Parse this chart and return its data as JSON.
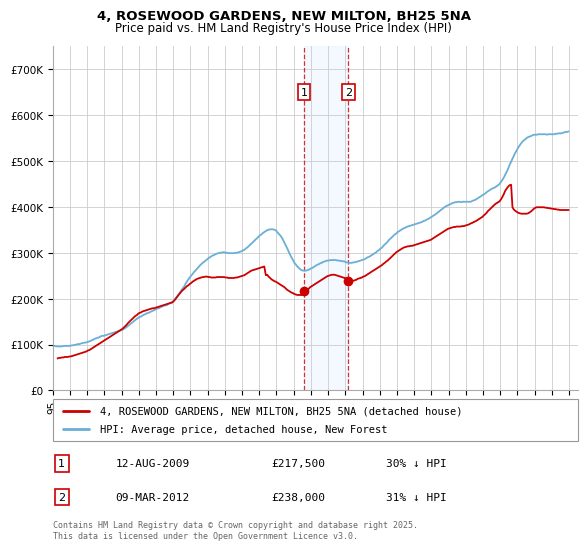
{
  "title": "4, ROSEWOOD GARDENS, NEW MILTON, BH25 5NA",
  "subtitle": "Price paid vs. HM Land Registry's House Price Index (HPI)",
  "ylim": [
    0,
    750000
  ],
  "yticks": [
    0,
    100000,
    200000,
    300000,
    400000,
    500000,
    600000,
    700000
  ],
  "ytick_labels": [
    "£0",
    "£100K",
    "£200K",
    "£300K",
    "£400K",
    "£500K",
    "£600K",
    "£700K"
  ],
  "xlim_start": 1995.0,
  "xlim_end": 2025.5,
  "xtick_years": [
    1995,
    1996,
    1997,
    1998,
    1999,
    2000,
    2001,
    2002,
    2003,
    2004,
    2005,
    2006,
    2007,
    2008,
    2009,
    2010,
    2011,
    2012,
    2013,
    2014,
    2015,
    2016,
    2017,
    2018,
    2019,
    2020,
    2021,
    2022,
    2023,
    2024,
    2025
  ],
  "hpi_color": "#6baed6",
  "property_color": "#cc0000",
  "grid_color": "#cccccc",
  "shade_color": "#ddeeff",
  "transaction1_date": 2009.61,
  "transaction2_date": 2012.18,
  "transaction1_label": "1",
  "transaction2_label": "2",
  "legend_property": "4, ROSEWOOD GARDENS, NEW MILTON, BH25 5NA (detached house)",
  "legend_hpi": "HPI: Average price, detached house, New Forest",
  "annotation1_date": "12-AUG-2009",
  "annotation1_price": "£217,500",
  "annotation1_hpi": "30% ↓ HPI",
  "annotation2_date": "09-MAR-2012",
  "annotation2_price": "£238,000",
  "annotation2_hpi": "31% ↓ HPI",
  "footnote": "Contains HM Land Registry data © Crown copyright and database right 2025.\nThis data is licensed under the Open Government Licence v3.0.",
  "hpi_years": [
    1995.04,
    1995.13,
    1995.21,
    1995.29,
    1995.38,
    1995.46,
    1995.54,
    1995.63,
    1995.71,
    1995.79,
    1995.88,
    1995.96,
    1996.04,
    1996.13,
    1996.21,
    1996.29,
    1996.38,
    1996.46,
    1996.54,
    1996.63,
    1996.71,
    1996.79,
    1996.88,
    1996.96,
    1997.04,
    1997.13,
    1997.21,
    1997.29,
    1997.38,
    1997.46,
    1997.54,
    1997.63,
    1997.71,
    1997.79,
    1997.88,
    1997.96,
    1998.04,
    1998.13,
    1998.21,
    1998.29,
    1998.38,
    1998.46,
    1998.54,
    1998.63,
    1998.71,
    1998.79,
    1998.88,
    1998.96,
    1999.04,
    1999.13,
    1999.21,
    1999.29,
    1999.38,
    1999.46,
    1999.54,
    1999.63,
    1999.71,
    1999.79,
    1999.88,
    1999.96,
    2000.04,
    2000.13,
    2000.21,
    2000.29,
    2000.38,
    2000.46,
    2000.54,
    2000.63,
    2000.71,
    2000.79,
    2000.88,
    2000.96,
    2001.04,
    2001.13,
    2001.21,
    2001.29,
    2001.38,
    2001.46,
    2001.54,
    2001.63,
    2001.71,
    2001.79,
    2001.88,
    2001.96,
    2002.04,
    2002.13,
    2002.21,
    2002.29,
    2002.38,
    2002.46,
    2002.54,
    2002.63,
    2002.71,
    2002.79,
    2002.88,
    2002.96,
    2003.04,
    2003.13,
    2003.21,
    2003.29,
    2003.38,
    2003.46,
    2003.54,
    2003.63,
    2003.71,
    2003.79,
    2003.88,
    2003.96,
    2004.04,
    2004.13,
    2004.21,
    2004.29,
    2004.38,
    2004.46,
    2004.54,
    2004.63,
    2004.71,
    2004.79,
    2004.88,
    2004.96,
    2005.04,
    2005.13,
    2005.21,
    2005.29,
    2005.38,
    2005.46,
    2005.54,
    2005.63,
    2005.71,
    2005.79,
    2005.88,
    2005.96,
    2006.04,
    2006.13,
    2006.21,
    2006.29,
    2006.38,
    2006.46,
    2006.54,
    2006.63,
    2006.71,
    2006.79,
    2006.88,
    2006.96,
    2007.04,
    2007.13,
    2007.21,
    2007.29,
    2007.38,
    2007.46,
    2007.54,
    2007.63,
    2007.71,
    2007.79,
    2007.88,
    2007.96,
    2008.04,
    2008.13,
    2008.21,
    2008.29,
    2008.38,
    2008.46,
    2008.54,
    2008.63,
    2008.71,
    2008.79,
    2008.88,
    2008.96,
    2009.04,
    2009.13,
    2009.21,
    2009.29,
    2009.38,
    2009.46,
    2009.54,
    2009.63,
    2009.71,
    2009.79,
    2009.88,
    2009.96,
    2010.04,
    2010.13,
    2010.21,
    2010.29,
    2010.38,
    2010.46,
    2010.54,
    2010.63,
    2010.71,
    2010.79,
    2010.88,
    2010.96,
    2011.04,
    2011.13,
    2011.21,
    2011.29,
    2011.38,
    2011.46,
    2011.54,
    2011.63,
    2011.71,
    2011.79,
    2011.88,
    2011.96,
    2012.04,
    2012.13,
    2012.21,
    2012.29,
    2012.38,
    2012.46,
    2012.54,
    2012.63,
    2012.71,
    2012.79,
    2012.88,
    2012.96,
    2013.04,
    2013.13,
    2013.21,
    2013.29,
    2013.38,
    2013.46,
    2013.54,
    2013.63,
    2013.71,
    2013.79,
    2013.88,
    2013.96,
    2014.04,
    2014.13,
    2014.21,
    2014.29,
    2014.38,
    2014.46,
    2014.54,
    2014.63,
    2014.71,
    2014.79,
    2014.88,
    2014.96,
    2015.04,
    2015.13,
    2015.21,
    2015.29,
    2015.38,
    2015.46,
    2015.54,
    2015.63,
    2015.71,
    2015.79,
    2015.88,
    2015.96,
    2016.04,
    2016.13,
    2016.21,
    2016.29,
    2016.38,
    2016.46,
    2016.54,
    2016.63,
    2016.71,
    2016.79,
    2016.88,
    2016.96,
    2017.04,
    2017.13,
    2017.21,
    2017.29,
    2017.38,
    2017.46,
    2017.54,
    2017.63,
    2017.71,
    2017.79,
    2017.88,
    2017.96,
    2018.04,
    2018.13,
    2018.21,
    2018.29,
    2018.38,
    2018.46,
    2018.54,
    2018.63,
    2018.71,
    2018.79,
    2018.88,
    2018.96,
    2019.04,
    2019.13,
    2019.21,
    2019.29,
    2019.38,
    2019.46,
    2019.54,
    2019.63,
    2019.71,
    2019.79,
    2019.88,
    2019.96,
    2020.04,
    2020.13,
    2020.21,
    2020.29,
    2020.38,
    2020.46,
    2020.54,
    2020.63,
    2020.71,
    2020.79,
    2020.88,
    2020.96,
    2021.04,
    2021.13,
    2021.21,
    2021.29,
    2021.38,
    2021.46,
    2021.54,
    2021.63,
    2021.71,
    2021.79,
    2021.88,
    2021.96,
    2022.04,
    2022.13,
    2022.21,
    2022.29,
    2022.38,
    2022.46,
    2022.54,
    2022.63,
    2022.71,
    2022.79,
    2022.88,
    2022.96,
    2023.04,
    2023.13,
    2023.21,
    2023.29,
    2023.38,
    2023.46,
    2023.54,
    2023.63,
    2023.71,
    2023.79,
    2023.88,
    2023.96,
    2024.04,
    2024.13,
    2024.21,
    2024.29,
    2024.38,
    2024.46,
    2024.54,
    2024.63,
    2024.71,
    2024.79,
    2024.88,
    2024.96
  ],
  "hpi_values": [
    97000,
    97000,
    96000,
    96000,
    96000,
    96000,
    96000,
    97000,
    97000,
    97000,
    97000,
    97000,
    98000,
    98000,
    99000,
    99000,
    100000,
    101000,
    101000,
    102000,
    103000,
    104000,
    104000,
    105000,
    106000,
    107000,
    108000,
    110000,
    111000,
    113000,
    114000,
    115000,
    116000,
    118000,
    119000,
    119000,
    120000,
    121000,
    122000,
    123000,
    124000,
    125000,
    126000,
    127000,
    128000,
    129000,
    130000,
    131000,
    132000,
    134000,
    136000,
    138000,
    141000,
    143000,
    146000,
    148000,
    151000,
    153000,
    156000,
    158000,
    160000,
    161000,
    163000,
    165000,
    166000,
    168000,
    169000,
    170000,
    172000,
    173000,
    175000,
    176000,
    178000,
    179000,
    180000,
    182000,
    183000,
    185000,
    185000,
    186000,
    188000,
    190000,
    191000,
    193000,
    196000,
    200000,
    204000,
    208000,
    213000,
    217000,
    222000,
    226000,
    232000,
    237000,
    242000,
    246000,
    250000,
    254000,
    258000,
    261000,
    265000,
    268000,
    272000,
    275000,
    278000,
    280000,
    283000,
    285000,
    288000,
    290000,
    292000,
    294000,
    295000,
    297000,
    298000,
    299000,
    300000,
    300000,
    301000,
    301000,
    300000,
    300000,
    299000,
    299000,
    299000,
    299000,
    299000,
    300000,
    300000,
    301000,
    302000,
    303000,
    305000,
    306000,
    309000,
    311000,
    314000,
    317000,
    320000,
    323000,
    326000,
    329000,
    332000,
    335000,
    338000,
    340000,
    343000,
    345000,
    347000,
    349000,
    350000,
    351000,
    351000,
    351000,
    350000,
    349000,
    345000,
    341000,
    338000,
    334000,
    328000,
    322000,
    316000,
    309000,
    302000,
    296000,
    289000,
    284000,
    278000,
    274000,
    270000,
    267000,
    264000,
    262000,
    261000,
    261000,
    261000,
    262000,
    263000,
    265000,
    266000,
    268000,
    270000,
    272000,
    274000,
    275000,
    277000,
    278000,
    280000,
    281000,
    282000,
    283000,
    283000,
    284000,
    284000,
    284000,
    284000,
    284000,
    283000,
    283000,
    282000,
    282000,
    281000,
    281000,
    279000,
    279000,
    278000,
    278000,
    278000,
    279000,
    279000,
    280000,
    281000,
    282000,
    283000,
    284000,
    285000,
    286000,
    288000,
    290000,
    291000,
    293000,
    295000,
    297000,
    299000,
    301000,
    304000,
    306000,
    309000,
    311000,
    315000,
    318000,
    321000,
    324000,
    328000,
    331000,
    334000,
    337000,
    340000,
    342000,
    345000,
    347000,
    349000,
    351000,
    353000,
    354000,
    356000,
    357000,
    358000,
    359000,
    360000,
    361000,
    362000,
    363000,
    364000,
    365000,
    366000,
    367000,
    369000,
    370000,
    372000,
    373000,
    375000,
    377000,
    379000,
    381000,
    383000,
    385000,
    388000,
    390000,
    393000,
    395000,
    398000,
    400000,
    402000,
    403000,
    405000,
    406000,
    408000,
    409000,
    410000,
    410000,
    411000,
    411000,
    410000,
    411000,
    411000,
    411000,
    411000,
    411000,
    411000,
    411000,
    413000,
    414000,
    415000,
    417000,
    419000,
    421000,
    423000,
    425000,
    427000,
    429000,
    432000,
    434000,
    436000,
    438000,
    440000,
    441000,
    443000,
    445000,
    447000,
    450000,
    454000,
    459000,
    464000,
    470000,
    477000,
    483000,
    491000,
    498000,
    505000,
    511000,
    518000,
    523000,
    529000,
    534000,
    538000,
    542000,
    545000,
    547000,
    550000,
    552000,
    553000,
    554000,
    556000,
    557000,
    557000,
    557000,
    558000,
    558000,
    558000,
    558000,
    558000,
    558000,
    557000,
    558000,
    558000,
    558000,
    558000,
    558000,
    559000,
    559000,
    560000,
    560000,
    560000,
    561000,
    562000,
    563000,
    563000,
    564000
  ],
  "prop_years": [
    1995.29,
    1995.38,
    1995.46,
    1995.54,
    1995.63,
    1995.71,
    1995.79,
    1995.88,
    1995.96,
    1996.04,
    1996.13,
    1996.21,
    1996.29,
    1996.38,
    1996.46,
    1996.54,
    1996.63,
    1996.71,
    1996.79,
    1996.88,
    1996.96,
    1997.04,
    1997.13,
    1997.21,
    1997.29,
    1997.38,
    1997.46,
    1997.54,
    1997.63,
    1997.71,
    1997.79,
    1997.88,
    1997.96,
    1998.04,
    1998.13,
    1998.21,
    1998.29,
    1998.38,
    1998.46,
    1998.54,
    1998.63,
    1998.71,
    1998.79,
    1998.88,
    1998.96,
    1999.04,
    1999.13,
    1999.21,
    1999.29,
    1999.38,
    1999.46,
    1999.54,
    1999.63,
    1999.71,
    1999.79,
    1999.88,
    1999.96,
    2000.04,
    2000.13,
    2000.21,
    2000.29,
    2000.38,
    2000.46,
    2000.54,
    2000.63,
    2000.71,
    2000.79,
    2000.88,
    2000.96,
    2001.04,
    2001.13,
    2001.21,
    2001.29,
    2001.38,
    2001.46,
    2001.54,
    2001.63,
    2001.71,
    2001.79,
    2001.88,
    2001.96,
    2002.04,
    2002.13,
    2002.21,
    2002.29,
    2002.38,
    2002.46,
    2002.54,
    2002.63,
    2002.71,
    2002.79,
    2002.88,
    2002.96,
    2003.04,
    2003.13,
    2003.21,
    2003.29,
    2003.38,
    2003.46,
    2003.54,
    2003.63,
    2003.71,
    2003.79,
    2003.88,
    2003.96,
    2004.04,
    2004.13,
    2004.21,
    2004.29,
    2004.38,
    2004.46,
    2004.54,
    2004.63,
    2004.71,
    2004.79,
    2004.88,
    2004.96,
    2005.04,
    2005.13,
    2005.21,
    2005.29,
    2005.38,
    2005.46,
    2005.54,
    2005.63,
    2005.71,
    2005.79,
    2005.88,
    2005.96,
    2006.04,
    2006.13,
    2006.21,
    2006.29,
    2006.38,
    2006.46,
    2006.54,
    2006.63,
    2006.71,
    2006.79,
    2006.88,
    2006.96,
    2007.04,
    2007.13,
    2007.21,
    2007.29,
    2007.38,
    2007.46,
    2007.54,
    2007.63,
    2007.71,
    2007.79,
    2007.88,
    2007.96,
    2008.04,
    2008.13,
    2008.21,
    2008.29,
    2008.38,
    2008.46,
    2008.54,
    2008.63,
    2008.71,
    2008.79,
    2008.88,
    2008.96,
    2009.04,
    2009.13,
    2009.21,
    2009.29,
    2009.38,
    2009.46,
    2009.54,
    2009.63,
    2009.71,
    2009.79,
    2009.88,
    2009.96,
    2010.04,
    2010.13,
    2010.21,
    2010.29,
    2010.38,
    2010.46,
    2010.54,
    2010.63,
    2010.71,
    2010.79,
    2010.88,
    2010.96,
    2011.04,
    2011.13,
    2011.21,
    2011.29,
    2011.38,
    2011.46,
    2011.54,
    2011.63,
    2011.71,
    2011.79,
    2011.88,
    2011.96,
    2012.04,
    2012.13,
    2012.21,
    2012.29,
    2012.38,
    2012.46,
    2012.54,
    2012.63,
    2012.71,
    2012.79,
    2012.88,
    2012.96,
    2013.04,
    2013.13,
    2013.21,
    2013.29,
    2013.38,
    2013.46,
    2013.54,
    2013.63,
    2013.71,
    2013.79,
    2013.88,
    2013.96,
    2014.04,
    2014.13,
    2014.21,
    2014.29,
    2014.38,
    2014.46,
    2014.54,
    2014.63,
    2014.71,
    2014.79,
    2014.88,
    2014.96,
    2015.04,
    2015.13,
    2015.21,
    2015.29,
    2015.38,
    2015.46,
    2015.54,
    2015.63,
    2015.71,
    2015.79,
    2015.88,
    2015.96,
    2016.04,
    2016.13,
    2016.21,
    2016.29,
    2016.38,
    2016.46,
    2016.54,
    2016.63,
    2016.71,
    2016.79,
    2016.88,
    2016.96,
    2017.04,
    2017.13,
    2017.21,
    2017.29,
    2017.38,
    2017.46,
    2017.54,
    2017.63,
    2017.71,
    2017.79,
    2017.88,
    2017.96,
    2018.04,
    2018.13,
    2018.21,
    2018.29,
    2018.38,
    2018.46,
    2018.54,
    2018.63,
    2018.71,
    2018.79,
    2018.88,
    2018.96,
    2019.04,
    2019.13,
    2019.21,
    2019.29,
    2019.38,
    2019.46,
    2019.54,
    2019.63,
    2019.71,
    2019.79,
    2019.88,
    2019.96,
    2020.04,
    2020.13,
    2020.21,
    2020.29,
    2020.38,
    2020.46,
    2020.54,
    2020.63,
    2020.71,
    2020.79,
    2020.88,
    2020.96,
    2021.04,
    2021.13,
    2021.21,
    2021.29,
    2021.38,
    2021.46,
    2021.54,
    2021.63,
    2021.71,
    2021.79,
    2021.88,
    2021.96,
    2022.04,
    2022.13,
    2022.21,
    2022.29,
    2022.38,
    2022.46,
    2022.54,
    2022.63,
    2022.71,
    2022.79,
    2022.88,
    2022.96,
    2023.04,
    2023.13,
    2023.21,
    2023.29,
    2023.38,
    2023.46,
    2023.54,
    2023.63,
    2023.71,
    2023.79,
    2023.88,
    2023.96,
    2024.04,
    2024.13,
    2024.21,
    2024.29,
    2024.38,
    2024.46,
    2024.54,
    2024.63,
    2024.71,
    2024.79,
    2024.88,
    2024.96
  ],
  "prop_values": [
    70000,
    71000,
    71000,
    72000,
    72000,
    73000,
    73000,
    73000,
    74000,
    74000,
    75000,
    76000,
    77000,
    78000,
    79000,
    80000,
    81000,
    82000,
    83000,
    84000,
    85000,
    87000,
    88000,
    90000,
    92000,
    94000,
    96000,
    98000,
    100000,
    102000,
    104000,
    106000,
    108000,
    110000,
    112000,
    114000,
    116000,
    118000,
    120000,
    122000,
    124000,
    126000,
    128000,
    130000,
    132000,
    134000,
    137000,
    140000,
    143000,
    147000,
    150000,
    153000,
    156000,
    159000,
    162000,
    164000,
    167000,
    169000,
    170000,
    172000,
    173000,
    174000,
    175000,
    176000,
    177000,
    178000,
    179000,
    179000,
    180000,
    181000,
    182000,
    183000,
    184000,
    185000,
    186000,
    187000,
    188000,
    189000,
    190000,
    191000,
    192000,
    195000,
    199000,
    203000,
    207000,
    211000,
    215000,
    218000,
    221000,
    224000,
    227000,
    229000,
    232000,
    234000,
    237000,
    239000,
    241000,
    243000,
    244000,
    245000,
    246000,
    247000,
    247000,
    248000,
    248000,
    247000,
    247000,
    246000,
    246000,
    246000,
    246000,
    247000,
    247000,
    247000,
    247000,
    247000,
    247000,
    246000,
    246000,
    245000,
    245000,
    245000,
    245000,
    245000,
    246000,
    246000,
    247000,
    248000,
    249000,
    250000,
    251000,
    253000,
    255000,
    257000,
    259000,
    261000,
    262000,
    263000,
    264000,
    265000,
    266000,
    267000,
    268000,
    269000,
    270000,
    251000,
    252000,
    248000,
    245000,
    242000,
    240000,
    238000,
    237000,
    235000,
    233000,
    231000,
    229000,
    227000,
    225000,
    222000,
    219000,
    217000,
    215000,
    213000,
    212000,
    210000,
    209000,
    208000,
    208000,
    208000,
    208000,
    209000,
    209000,
    210000,
    217500,
    222000,
    225000,
    227000,
    229000,
    231000,
    233000,
    235000,
    237000,
    239000,
    241000,
    243000,
    245000,
    247000,
    249000,
    250000,
    251000,
    252000,
    252000,
    252000,
    251000,
    250000,
    249000,
    248000,
    247000,
    246000,
    245000,
    244000,
    244000,
    244000,
    244000,
    238000,
    239000,
    240000,
    241000,
    243000,
    244000,
    245000,
    246000,
    248000,
    249000,
    251000,
    253000,
    255000,
    257000,
    259000,
    261000,
    263000,
    265000,
    267000,
    269000,
    271000,
    273000,
    276000,
    278000,
    281000,
    283000,
    286000,
    289000,
    292000,
    295000,
    298000,
    301000,
    303000,
    305000,
    307000,
    309000,
    311000,
    312000,
    313000,
    314000,
    314000,
    315000,
    315000,
    316000,
    317000,
    318000,
    319000,
    320000,
    321000,
    322000,
    323000,
    324000,
    325000,
    326000,
    327000,
    328000,
    330000,
    332000,
    334000,
    336000,
    338000,
    340000,
    342000,
    344000,
    346000,
    348000,
    350000,
    352000,
    353000,
    354000,
    355000,
    356000,
    356000,
    357000,
    357000,
    357000,
    357000,
    358000,
    358000,
    359000,
    360000,
    361000,
    362000,
    364000,
    365000,
    367000,
    368000,
    370000,
    372000,
    374000,
    376000,
    378000,
    381000,
    384000,
    387000,
    391000,
    394000,
    397000,
    400000,
    403000,
    406000,
    408000,
    410000,
    412000,
    416000,
    422000,
    428000,
    435000,
    440000,
    444000,
    447000,
    448000,
    399000,
    394000,
    391000,
    389000,
    387000,
    386000,
    385000,
    385000,
    385000,
    385000,
    385000,
    386000,
    388000,
    390000,
    393000,
    396000,
    398000,
    399000,
    399000,
    399000,
    399000,
    399000,
    399000,
    398000,
    398000,
    397000,
    397000,
    396000,
    396000,
    395000,
    395000,
    394000,
    394000,
    393000,
    393000,
    393000,
    393000,
    393000,
    393000,
    393000
  ]
}
